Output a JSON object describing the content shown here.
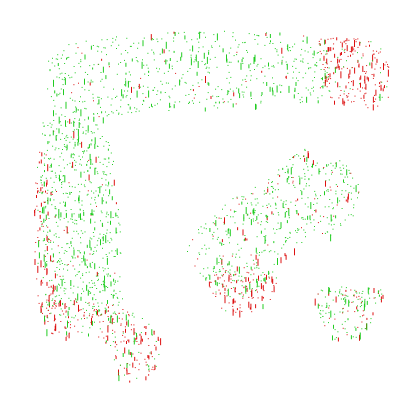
{
  "scene": {
    "background": "#ffffff",
    "point_colors": {
      "primary": "#22cc22",
      "secondary": "#dd1111"
    },
    "parts": [
      {
        "name": "upper-arm-strip",
        "dominant": "primary"
      },
      {
        "name": "upper-right-cap",
        "dominant": "secondary"
      },
      {
        "name": "left-column",
        "dominant": "primary"
      },
      {
        "name": "left-edge-band",
        "dominant": "secondary"
      },
      {
        "name": "lower-left-foot",
        "dominant": "secondary"
      },
      {
        "name": "middle-wedge",
        "dominant": "primary"
      },
      {
        "name": "middle-wedge-tip",
        "dominant": "secondary"
      },
      {
        "name": "small-lower-right-cluster",
        "dominant": "primary"
      }
    ]
  }
}
